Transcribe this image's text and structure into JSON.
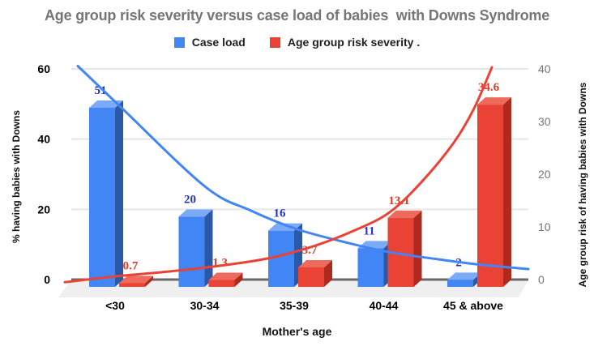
{
  "title": "Age group risk severity versus case load of babies  with Downs Syndrome",
  "legend": [
    {
      "label": "Case load",
      "color": "#4285F4"
    },
    {
      "label": "Age group risk severity .",
      "color": "#EA4335"
    }
  ],
  "chart_data": {
    "type": "bar",
    "categories": [
      "<30",
      "30-34",
      "35-39",
      "40-44",
      "45 & above"
    ],
    "series": [
      {
        "name": "Case load",
        "axis": "left",
        "values": [
          51,
          20,
          16,
          11,
          2
        ],
        "colors": {
          "front": "#4285F4",
          "top": "#7BAAF7",
          "side": "#2B59A8"
        },
        "label_color": "#2433C9"
      },
      {
        "name": "Age group risk severity .",
        "axis": "right",
        "values": [
          0.7,
          1.3,
          3.7,
          13.1,
          34.6
        ],
        "colors": {
          "front": "#EA4335",
          "top": "#EE6A5C",
          "side": "#AE2A1D"
        },
        "label_color": "#E03A2C"
      }
    ],
    "trendlines": [
      {
        "series": "Case load",
        "axis": "left",
        "color": "#4285F4",
        "points": [
          [
            96,
            60.8
          ],
          [
            150,
            48.9
          ],
          [
            253,
            26.5
          ],
          [
            310,
            19.6
          ],
          [
            367,
            14.3
          ],
          [
            430,
            10.4
          ],
          [
            481,
            7.8
          ],
          [
            540,
            5.8
          ],
          [
            594,
            4.2
          ],
          [
            652,
            3.0
          ]
        ]
      },
      {
        "series": "Age group risk severity .",
        "axis": "right",
        "color": "#EA4335",
        "points": [
          [
            80,
            -0.5
          ],
          [
            142,
            0.6
          ],
          [
            200,
            1.4
          ],
          [
            260,
            2.4
          ],
          [
            330,
            4.0
          ],
          [
            390,
            6.5
          ],
          [
            440,
            9.5
          ],
          [
            481,
            12.8
          ],
          [
            520,
            18.5
          ],
          [
            560,
            26.0
          ],
          [
            585,
            32.5
          ],
          [
            607,
            40.3
          ]
        ]
      }
    ],
    "axes": {
      "left": {
        "title": "% having babies with Downs",
        "ticks": [
          0,
          20,
          40,
          60
        ],
        "range": [
          0,
          60
        ]
      },
      "right": {
        "title": "Age group risk of having babies with Downs",
        "ticks": [
          0,
          10,
          20,
          30,
          40
        ],
        "range": [
          0,
          40
        ]
      },
      "x": {
        "title": "Mother's age"
      }
    },
    "grid": true,
    "legend_position": "top"
  },
  "colors": {
    "floor": "#EFEFEF",
    "gridline": "#E6E6E6",
    "baseline": "#686868",
    "title": "#757575",
    "tick_left": "#000000",
    "tick_right": "#757575"
  }
}
